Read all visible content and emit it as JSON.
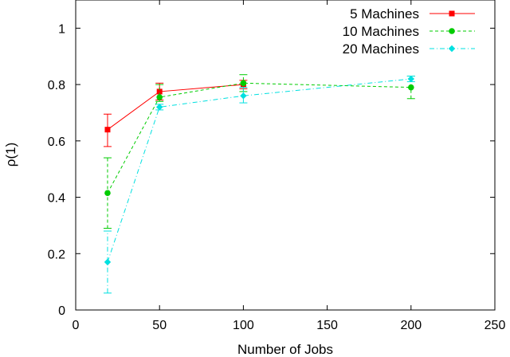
{
  "chart_data": {
    "type": "line",
    "xlabel": "Number of Jobs",
    "ylabel": "ρ(1)",
    "xlim": [
      0,
      250
    ],
    "ylim": [
      0,
      1.1
    ],
    "xticks": [
      0,
      50,
      100,
      150,
      200,
      250
    ],
    "yticks": [
      0,
      0.2,
      0.4,
      0.6,
      0.8,
      1
    ],
    "x_tick_labels": [
      "0",
      "50",
      "100",
      "150",
      "200",
      "250"
    ],
    "y_tick_labels": [
      "0",
      "0.2",
      "0.4",
      "0.6",
      "0.8",
      "1"
    ],
    "grid": false,
    "legend_position": "top-right",
    "error_bars": true,
    "series": [
      {
        "name": "5 Machines",
        "color": "#ff0000",
        "line_style": "solid",
        "marker": "square",
        "x": [
          19,
          50,
          100
        ],
        "y": [
          0.64,
          0.775,
          0.8
        ],
        "yerr_low": [
          0.58,
          0.745,
          0.785
        ],
        "yerr_high": [
          0.695,
          0.805,
          0.815
        ]
      },
      {
        "name": "10 Machines",
        "color": "#00cc00",
        "line_style": "dashed",
        "marker": "circle",
        "x": [
          19,
          50,
          100,
          200
        ],
        "y": [
          0.415,
          0.755,
          0.805,
          0.79
        ],
        "yerr_low": [
          0.29,
          0.74,
          0.775,
          0.75
        ],
        "yerr_high": [
          0.54,
          0.8,
          0.835,
          0.83
        ]
      },
      {
        "name": "20 Machines",
        "color": "#00e0e0",
        "line_style": "dashdot",
        "marker": "diamond",
        "x": [
          19,
          50,
          100,
          200
        ],
        "y": [
          0.17,
          0.72,
          0.76,
          0.82
        ],
        "yerr_low": [
          0.06,
          0.71,
          0.735,
          0.81
        ],
        "yerr_high": [
          0.28,
          0.73,
          0.79,
          0.83
        ]
      }
    ]
  }
}
